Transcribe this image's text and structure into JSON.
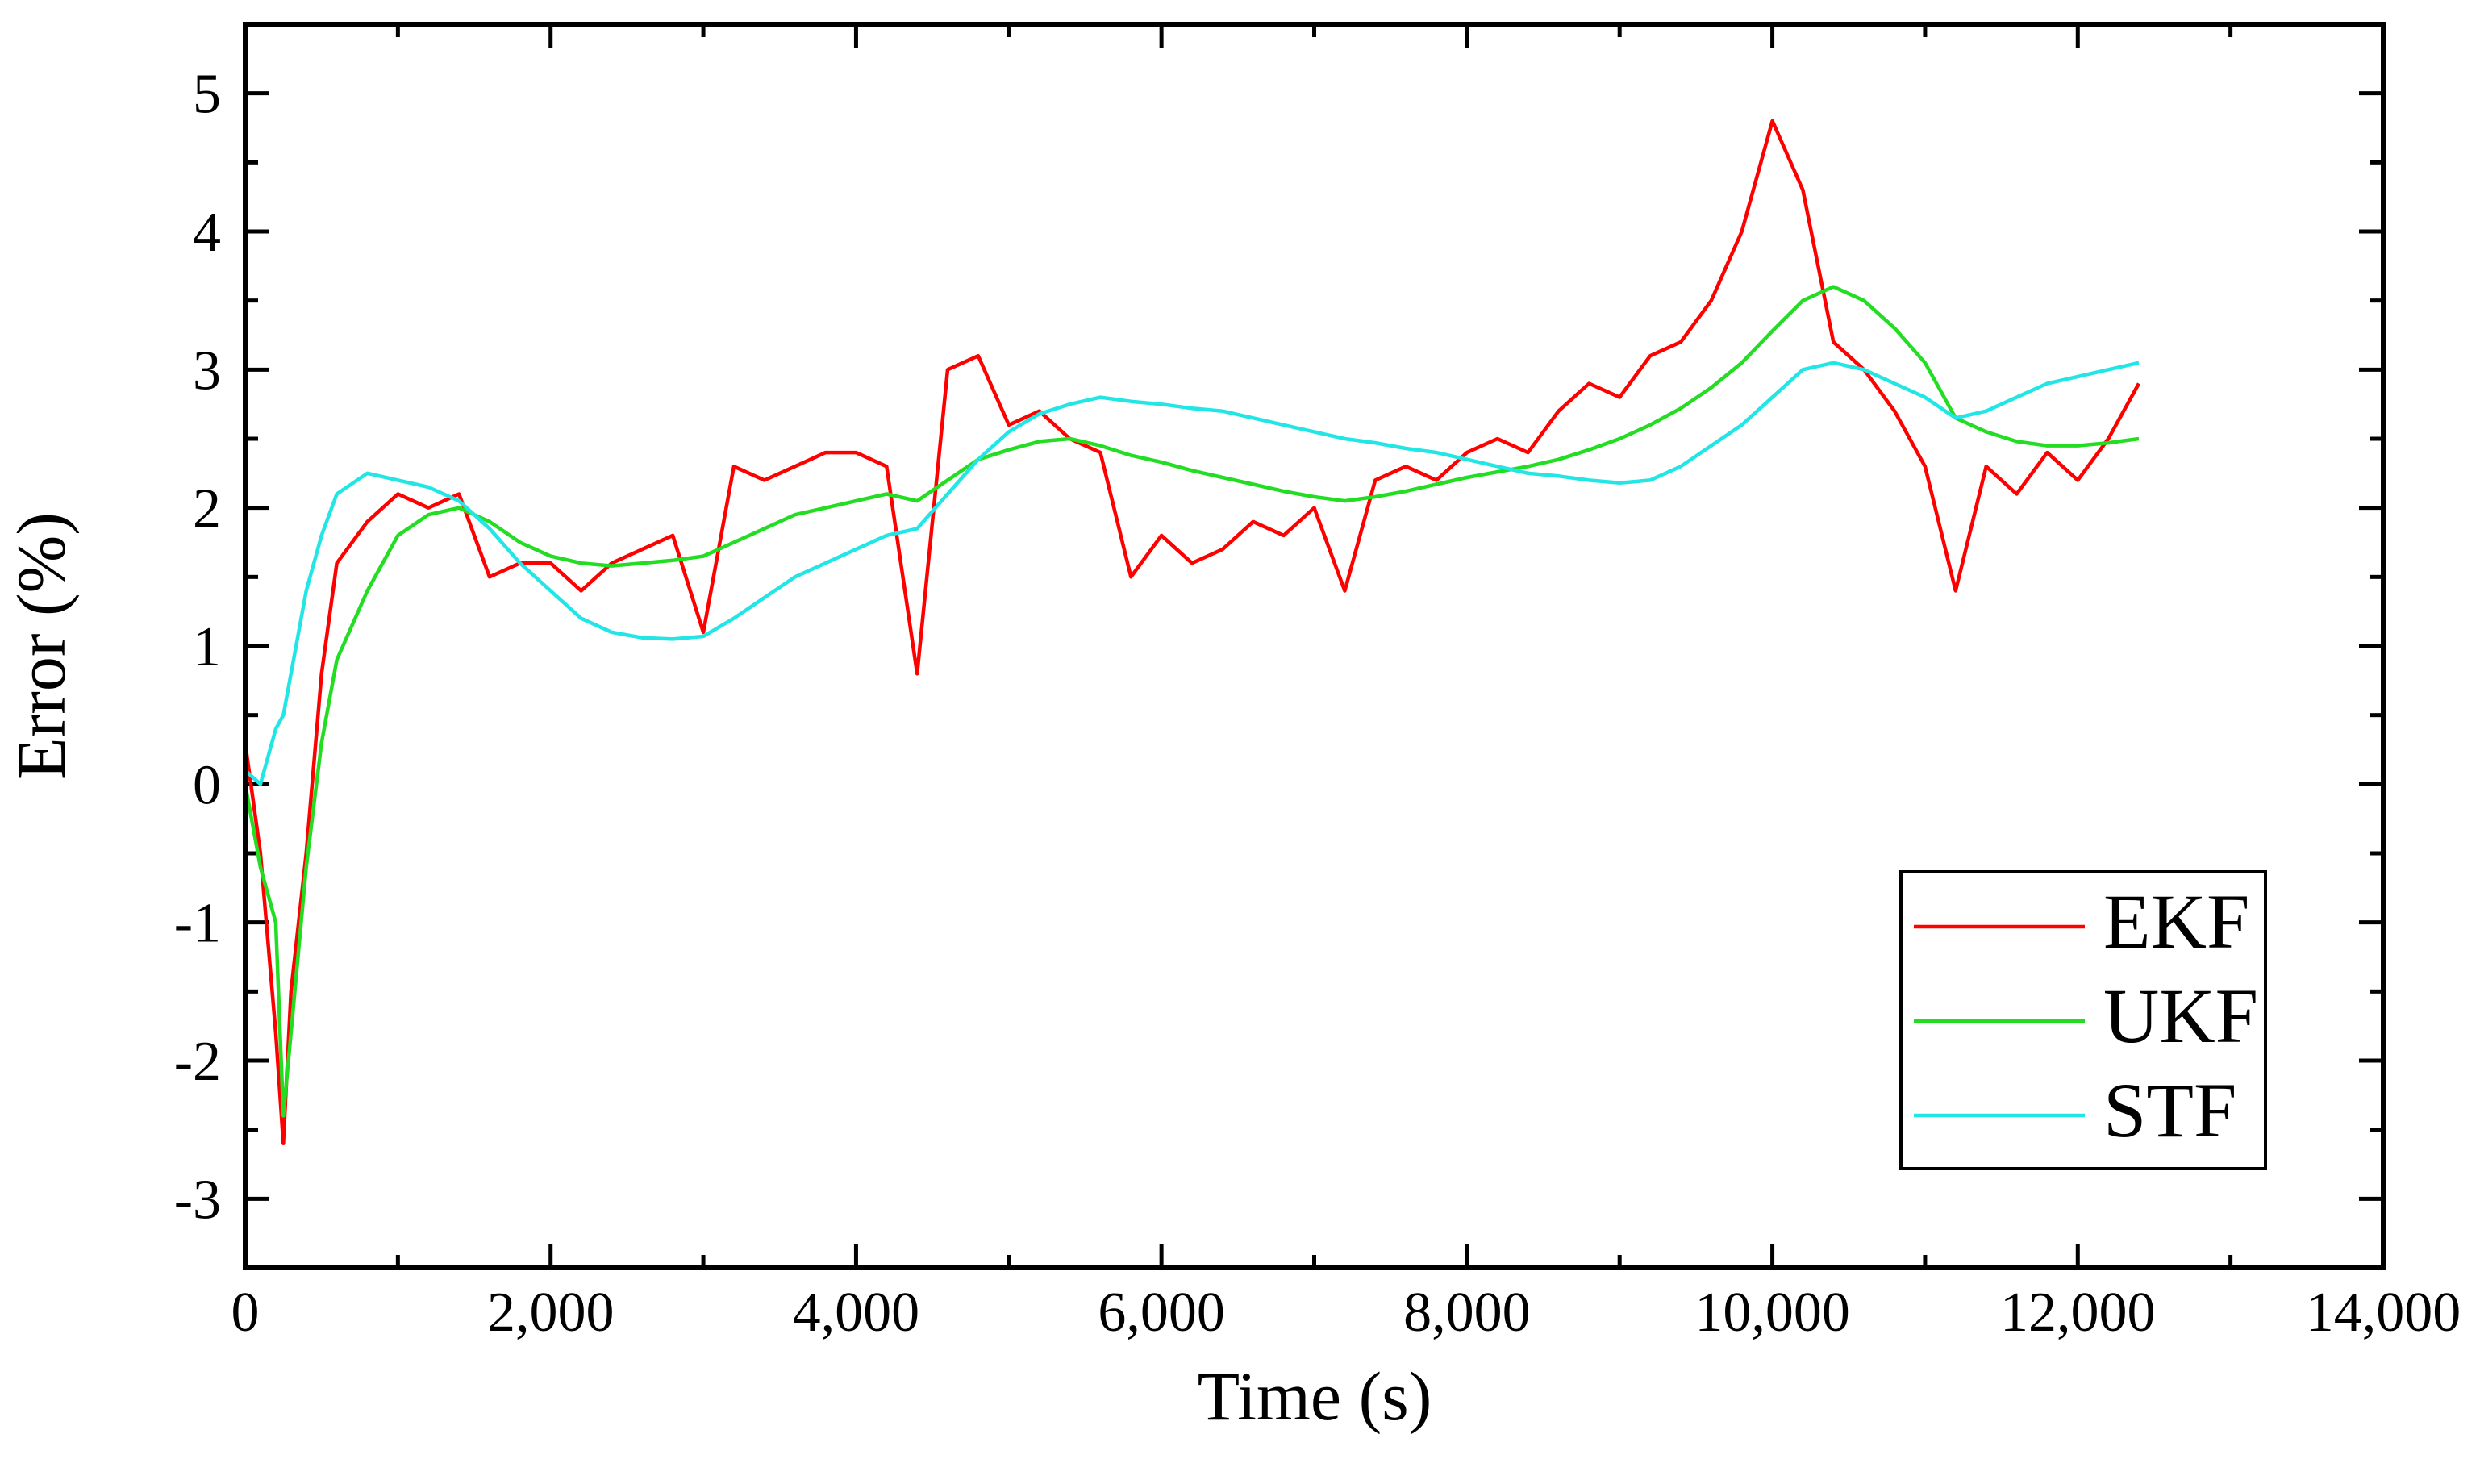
{
  "chart_data": {
    "type": "line",
    "xlabel": "Time (s)",
    "ylabel": "Error (%)",
    "x": [
      0,
      100,
      200,
      250,
      300,
      400,
      500,
      600,
      800,
      1000,
      1200,
      1400,
      1600,
      1800,
      2000,
      2200,
      2400,
      2600,
      2800,
      3000,
      3200,
      3400,
      3600,
      3800,
      4000,
      4200,
      4400,
      4600,
      4800,
      5000,
      5200,
      5400,
      5600,
      5800,
      6000,
      6200,
      6400,
      6600,
      6800,
      7000,
      7200,
      7400,
      7600,
      7800,
      8000,
      8200,
      8400,
      8600,
      8800,
      9000,
      9200,
      9400,
      9600,
      9800,
      10000,
      10200,
      10400,
      10600,
      10800,
      11000,
      11200,
      11400,
      11600,
      11800,
      12000,
      12200,
      12400
    ],
    "series": [
      {
        "name": "EKF",
        "color": "#ff0000",
        "values": [
          0.3,
          -0.5,
          -1.8,
          -2.6,
          -1.5,
          -0.5,
          0.8,
          1.6,
          1.9,
          2.1,
          2.0,
          2.1,
          1.5,
          1.6,
          1.6,
          1.4,
          1.6,
          1.7,
          1.8,
          1.1,
          2.3,
          2.2,
          2.3,
          2.4,
          2.4,
          2.3,
          0.8,
          3.0,
          3.1,
          2.6,
          2.7,
          2.5,
          2.4,
          1.5,
          1.8,
          1.6,
          1.7,
          1.9,
          1.8,
          2.0,
          1.4,
          2.2,
          2.3,
          2.2,
          2.4,
          2.5,
          2.4,
          2.7,
          2.9,
          2.8,
          3.1,
          3.2,
          3.5,
          4.0,
          4.8,
          4.3,
          3.2,
          3.0,
          2.7,
          2.3,
          1.4,
          2.3,
          2.1,
          2.4,
          2.2,
          2.5,
          2.9
        ]
      },
      {
        "name": "UKF",
        "color": "#22dd22",
        "values": [
          0.0,
          -0.6,
          -1.0,
          -2.4,
          -1.8,
          -0.6,
          0.3,
          0.9,
          1.4,
          1.8,
          1.95,
          2.0,
          1.9,
          1.75,
          1.65,
          1.6,
          1.58,
          1.6,
          1.62,
          1.65,
          1.75,
          1.85,
          1.95,
          2.0,
          2.05,
          2.1,
          2.05,
          2.2,
          2.35,
          2.42,
          2.48,
          2.5,
          2.45,
          2.38,
          2.33,
          2.27,
          2.22,
          2.17,
          2.12,
          2.08,
          2.05,
          2.08,
          2.12,
          2.17,
          2.22,
          2.26,
          2.3,
          2.35,
          2.42,
          2.5,
          2.6,
          2.72,
          2.87,
          3.05,
          3.28,
          3.5,
          3.6,
          3.5,
          3.3,
          3.05,
          2.65,
          2.55,
          2.48,
          2.45,
          2.45,
          2.47,
          2.5
        ]
      },
      {
        "name": "STF",
        "color": "#22e5e5",
        "values": [
          0.1,
          0.0,
          0.4,
          0.5,
          0.8,
          1.4,
          1.8,
          2.1,
          2.25,
          2.2,
          2.15,
          2.05,
          1.85,
          1.6,
          1.4,
          1.2,
          1.1,
          1.06,
          1.05,
          1.07,
          1.2,
          1.35,
          1.5,
          1.6,
          1.7,
          1.8,
          1.85,
          2.1,
          2.35,
          2.55,
          2.68,
          2.75,
          2.8,
          2.77,
          2.75,
          2.72,
          2.7,
          2.65,
          2.6,
          2.55,
          2.5,
          2.47,
          2.43,
          2.4,
          2.35,
          2.3,
          2.25,
          2.23,
          2.2,
          2.18,
          2.2,
          2.3,
          2.45,
          2.6,
          2.8,
          3.0,
          3.05,
          3.0,
          2.9,
          2.8,
          2.65,
          2.7,
          2.8,
          2.9,
          2.95,
          3.0,
          3.05
        ]
      }
    ],
    "xlim": [
      0,
      14000
    ],
    "xticks": [
      0,
      {
        "value": 2000,
        "label": "2,000"
      },
      {
        "value": 4000,
        "label": "4,000"
      },
      {
        "value": 6000,
        "label": "6,000"
      },
      {
        "value": 8000,
        "label": "8,000"
      },
      {
        "value": 10000,
        "label": "10,000"
      },
      {
        "value": 12000,
        "label": "12,000"
      },
      {
        "value": 14000,
        "label": "14,000"
      }
    ],
    "ylim": [
      -3.5,
      5.5
    ],
    "yticks": [
      -3,
      -2,
      -1,
      0,
      1,
      2,
      3,
      4,
      5
    ],
    "legend": "lower right"
  }
}
